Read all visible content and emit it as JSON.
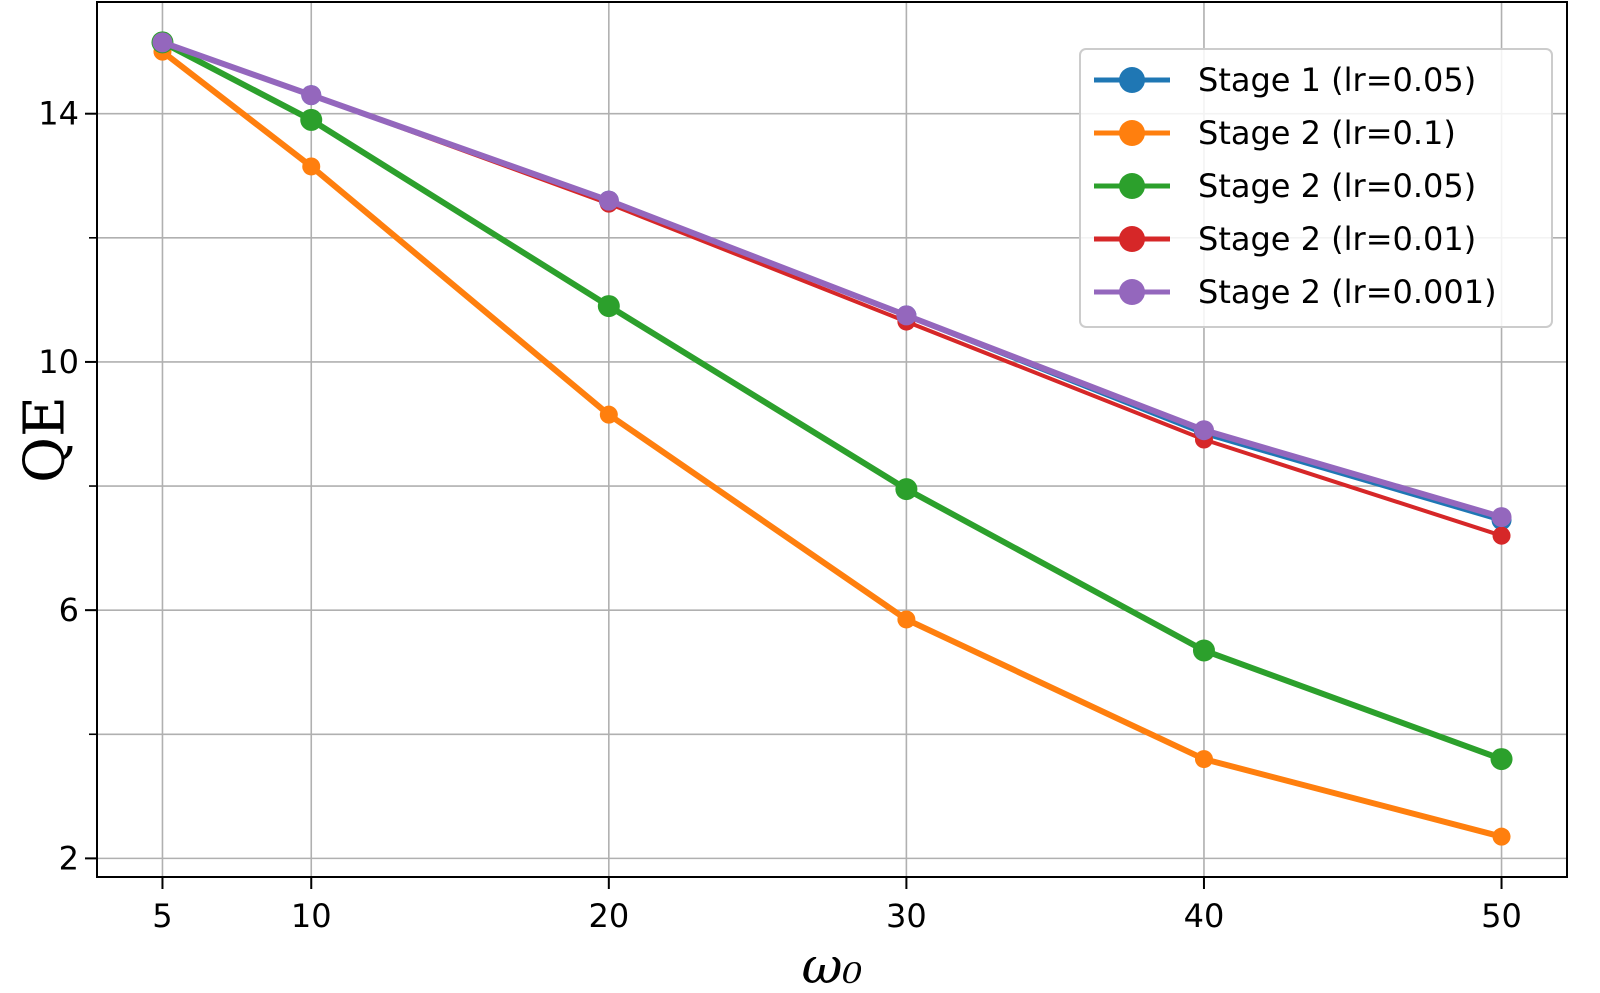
{
  "chart_data": {
    "type": "line",
    "title": "",
    "xlabel": "ω₀",
    "ylabel": "QE",
    "x": [
      5,
      10,
      20,
      30,
      40,
      50
    ],
    "xlim": [
      2.8,
      52.2
    ],
    "ylim": [
      1.7,
      15.8
    ],
    "xticks": [
      5,
      10,
      20,
      30,
      40,
      50
    ],
    "yticks": [
      2,
      6,
      10,
      14
    ],
    "yticks_minor": [
      4,
      8,
      12
    ],
    "grid": true,
    "legend_position": "top-right",
    "series": [
      {
        "name": "Stage 1 (lr=0.05)",
        "color": "#1f77b4",
        "values": [
          15.15,
          14.3,
          12.6,
          10.75,
          8.85,
          7.45
        ]
      },
      {
        "name": "Stage 2 (lr=0.1)",
        "color": "#ff7f0e",
        "values": [
          15.0,
          13.15,
          9.15,
          5.85,
          3.6,
          2.35
        ]
      },
      {
        "name": "Stage 2 (lr=0.05)",
        "color": "#2ca02c",
        "values": [
          15.15,
          13.9,
          10.9,
          7.95,
          5.35,
          3.6
        ]
      },
      {
        "name": "Stage 2 (lr=0.01)",
        "color": "#d62728",
        "values": [
          15.15,
          14.3,
          12.55,
          10.65,
          8.75,
          7.2
        ]
      },
      {
        "name": "Stage 2 (lr=0.001)",
        "color": "#9467bd",
        "values": [
          15.15,
          14.3,
          12.6,
          10.75,
          8.9,
          7.5
        ]
      }
    ]
  }
}
